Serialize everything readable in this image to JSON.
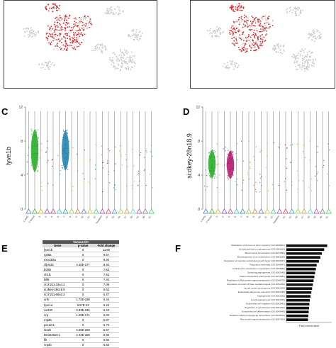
{
  "panels": {
    "C": {
      "letter": "C",
      "ylabel": "lyve1b",
      "yticks": [
        "12",
        "8",
        "4",
        "0"
      ]
    },
    "D": {
      "letter": "D",
      "ylabel": "si:dkey-28n18.9",
      "yticks": [
        "12",
        "8",
        "4",
        "0"
      ]
    },
    "E": {
      "letter": "E"
    },
    "F": {
      "letter": "F"
    }
  },
  "violin_c": {
    "categories": [
      "1-Aorta",
      "2-Vessel",
      "3-",
      "4-",
      "5-",
      "6- ",
      "7-",
      "8-",
      "9-",
      "10-",
      "11-",
      "12-",
      "13-Mesoderm",
      "14-",
      "15-",
      "16-",
      "17-",
      "18-",
      "19-",
      "20-",
      "21-"
    ],
    "big": [
      {
        "i": 1,
        "color": "#22aa22",
        "top": 9.4,
        "bottom": 4.3
      },
      {
        "i": 6,
        "color": "#1a7fb0",
        "top": 9.3,
        "bottom": 4.5
      }
    ]
  },
  "violin_d": {
    "categories": [
      "1-Aorta",
      "2-Vessel",
      "3-",
      "4-",
      "5-",
      "6- ",
      "7-",
      "8-",
      "9-",
      "10-",
      "11-",
      "12-",
      "13-Mesoderm",
      "14-",
      "15-",
      "16-",
      "17-",
      "18-",
      "19-",
      "20-",
      "21-"
    ],
    "big": [
      {
        "i": 1,
        "color": "#22aa22",
        "top": 7.0,
        "bottom": 3.6
      },
      {
        "i": 4,
        "color": "#b0146a",
        "top": 6.9,
        "bottom": 3.5
      }
    ]
  },
  "table_e": {
    "title": "Venous EC",
    "headers": [
      "Gene",
      "p-value",
      "Fold change"
    ],
    "rows": [
      [
        "lyve1b",
        "0",
        "11.60"
      ],
      [
        "rgs5a",
        "0",
        "9.57"
      ],
      [
        "exoc3l2a",
        "0",
        "8.40"
      ],
      [
        "zfpm2b",
        "4.40E-277",
        "8.40"
      ],
      [
        "bcl6b",
        "0",
        "7.63"
      ],
      [
        "ch1l1",
        "0",
        "7.63"
      ],
      [
        "kilf8",
        "0",
        "7.40"
      ],
      [
        "si:ch211-33e4.2",
        "0",
        "7.08"
      ],
      [
        "si:dkey-28n18.9",
        "0",
        "6.62"
      ],
      [
        "si:ch211-66e2.3",
        "0",
        "6.47"
      ],
      [
        "arrb",
        "1.72E-188",
        "6.44"
      ],
      [
        "lyve1a",
        "9.57E-22",
        "6.43"
      ],
      [
        "cxcl20",
        "9.83E-245",
        "6.43"
      ],
      [
        "nrp",
        "1.29E-171",
        "6.02"
      ],
      [
        "rnp2b",
        "0",
        "5.87"
      ],
      [
        "pecam1",
        "0",
        "5.76"
      ],
      [
        "lox2b",
        "4.50E-259",
        "5.67"
      ],
      [
        "BX323619.1",
        "2.44E-259",
        "5.60"
      ],
      [
        "flk",
        "0",
        "5.60"
      ],
      [
        "nrp2b",
        "0",
        "5.55"
      ]
    ]
  },
  "chart_f": {
    "type": "bar",
    "xlabel": "Fold enrichment",
    "categories": [
      "Modulation of process of other organism (GO:0035821)",
      "Endothelial tube morphogenesis (GO:0061154)",
      "Blood vessel lumenization (GO:0072554)",
      "Morphogenesis of an endothelium (GO:0003159)",
      "Regulation of vascular endothelial growth factor (GO:0030947)",
      "Filopodium assembly (GO:0046847)",
      "Cortical actin cytoskeleton organization (GO:0030866)",
      "Sprouting angiogenesis (GO:0002040)",
      "Clathrin-dependent endocytosis (GO:0072583)",
      "Regulation of Ras protein signal transduction (GO:0046578)",
      "Regulation of small GTPase mediated signal (GO:0051056)",
      "Lymph vessel development (GO:0001945)",
      "Endothelial tube lumen extension (GO:0097498)",
      "Angiogenesis (GO:0001525)",
      "Lymphangiogenesis (GO:0001946)",
      "Endothelial cell migration (GO:0043542)",
      "Regulation of cytoskeleton (GO:0051493)",
      "Endothelial cell differentiation (GO:0045446)",
      "Heparan sulfate proteoglycan biosynthetic (GO:0015012)",
      "Rho protein signal transduction (GO:0007266)"
    ],
    "values": [
      5.4,
      5.0,
      4.7,
      4.5,
      4.3,
      4.0,
      3.9,
      3.8,
      3.7,
      3.6,
      3.5,
      3.4,
      3.3,
      3.2,
      3.1,
      3.05,
      3.0,
      2.95,
      2.9,
      2.85
    ],
    "xlim": [
      0,
      6
    ]
  }
}
